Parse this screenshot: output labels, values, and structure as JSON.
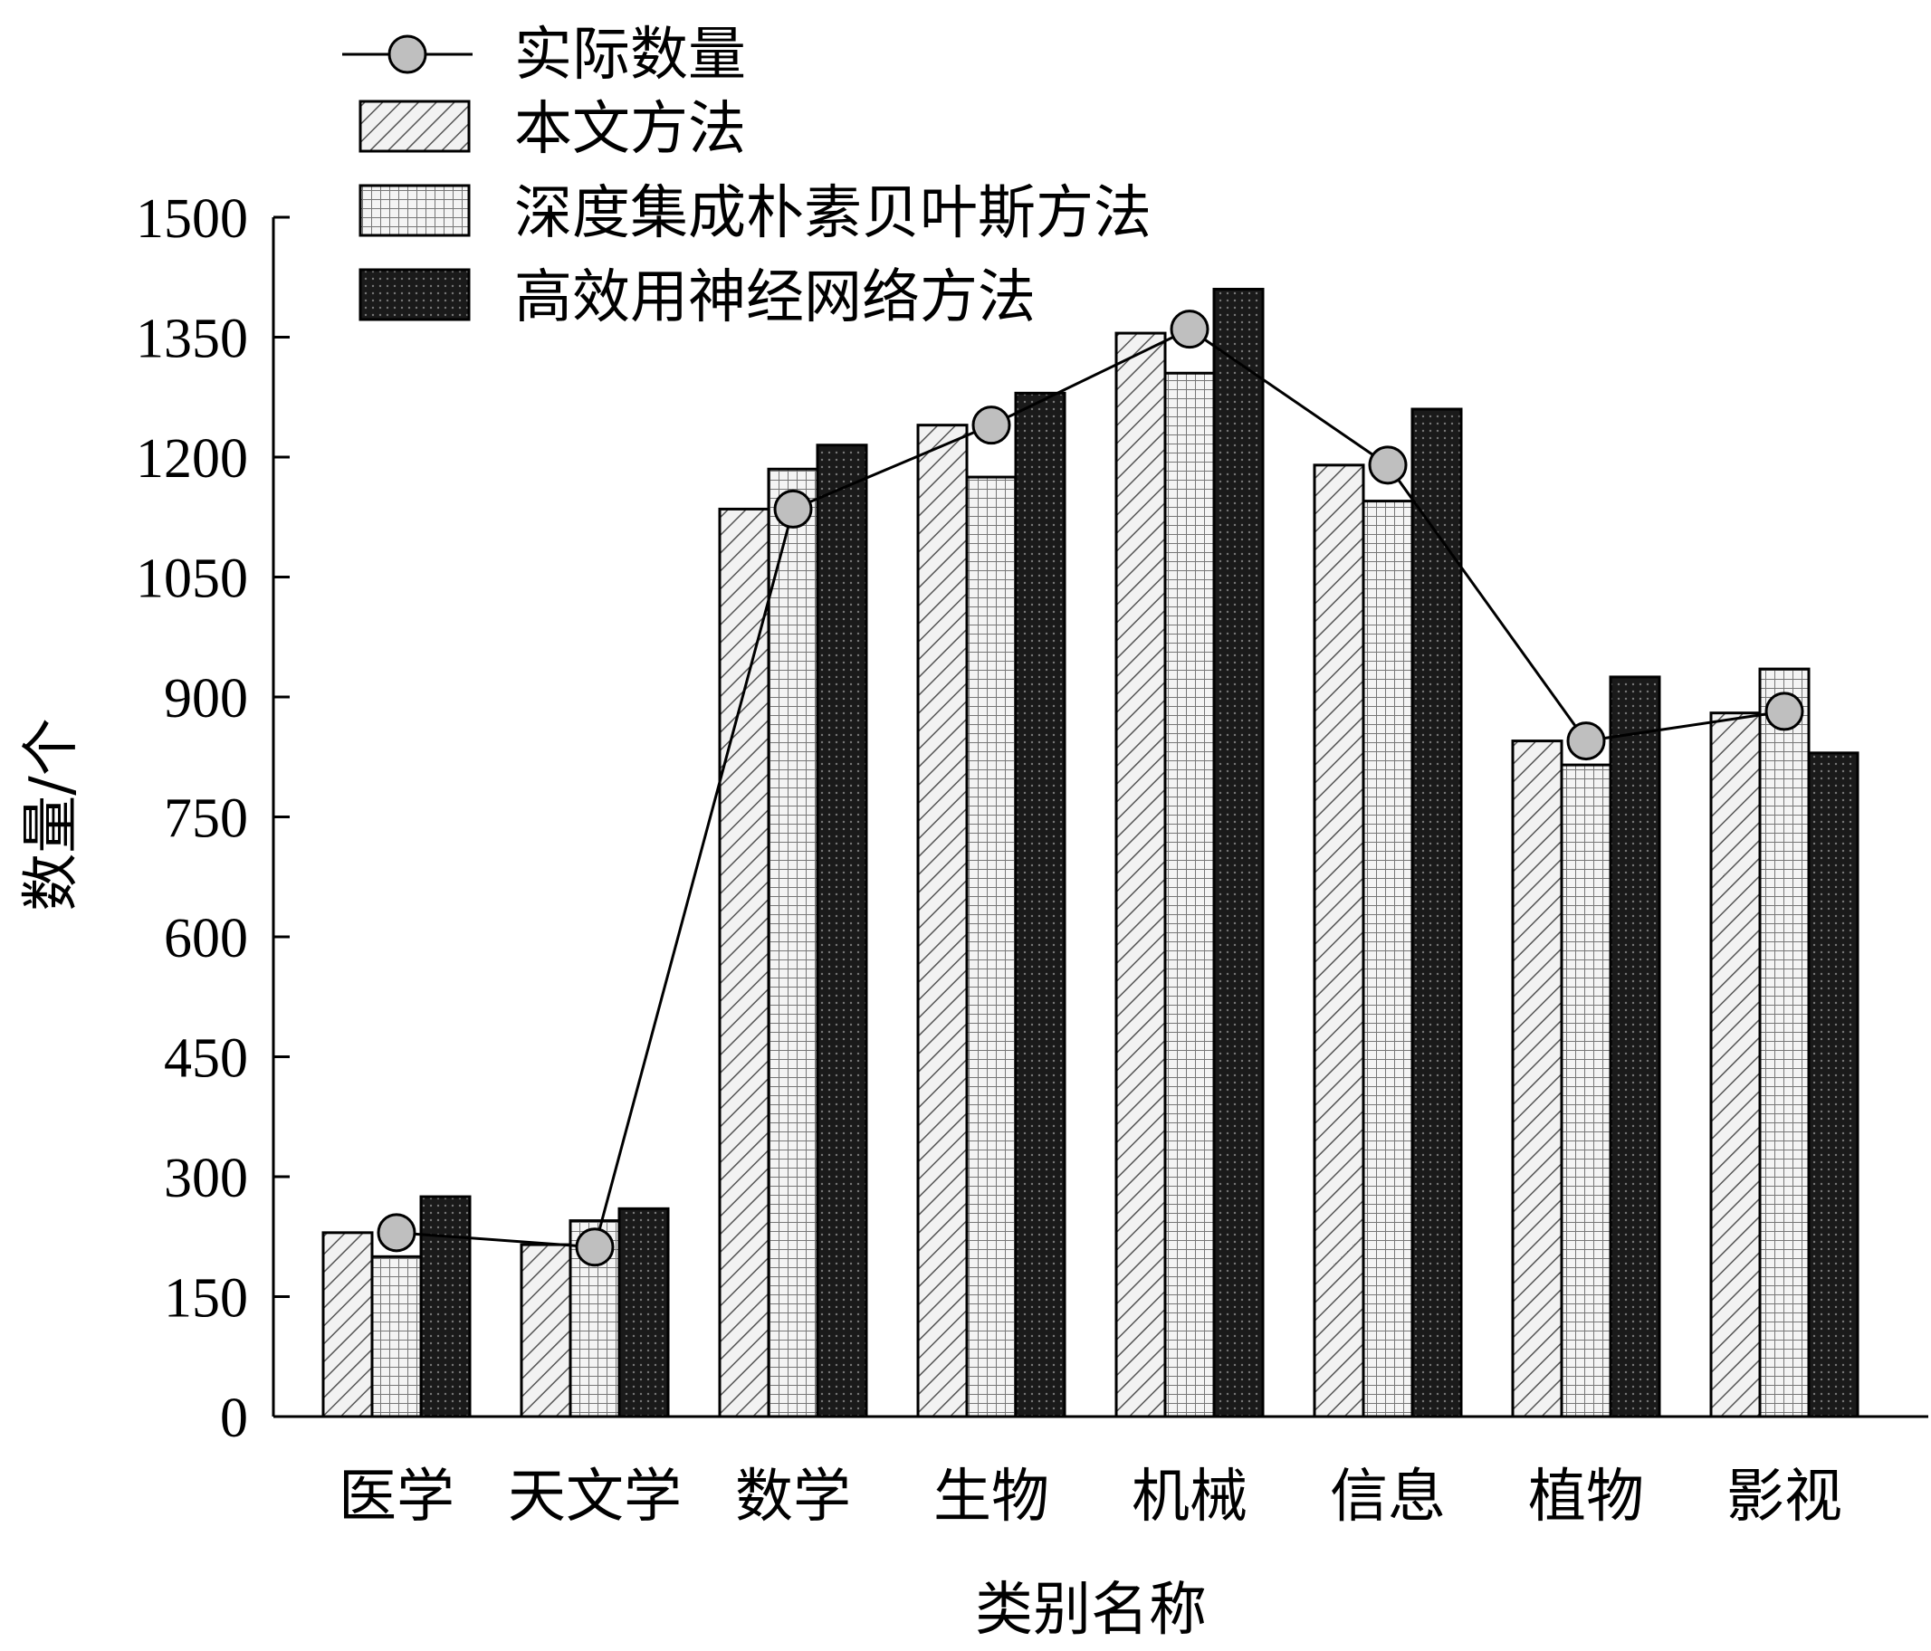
{
  "chart_data": {
    "type": "bar",
    "xlabel": "类别名称",
    "ylabel": "数量/个",
    "ylim": [
      0,
      1500
    ],
    "yticks": [
      0,
      150,
      300,
      450,
      600,
      750,
      900,
      1050,
      1200,
      1350,
      1500
    ],
    "grid": false,
    "legend_position": "top-left",
    "categories": [
      "医学",
      "天文学",
      "数学",
      "生物",
      "机械",
      "信息",
      "植物",
      "影视"
    ],
    "series": [
      {
        "name": "本文方法",
        "kind": "bar",
        "pattern": "diagonal-hatch",
        "values": [
          230,
          215,
          1135,
          1240,
          1355,
          1190,
          845,
          880
        ]
      },
      {
        "name": "深度集成朴素贝叶斯方法",
        "kind": "bar",
        "pattern": "grid-hatch",
        "values": [
          200,
          245,
          1185,
          1175,
          1305,
          1145,
          815,
          935
        ]
      },
      {
        "name": "高效用神经网络方法",
        "kind": "bar",
        "pattern": "dark-dotted",
        "values": [
          275,
          260,
          1215,
          1280,
          1410,
          1260,
          925,
          830
        ]
      },
      {
        "name": "实际数量",
        "kind": "line-marker",
        "values": [
          230,
          212,
          1135,
          1240,
          1360,
          1190,
          845,
          882
        ]
      }
    ]
  }
}
